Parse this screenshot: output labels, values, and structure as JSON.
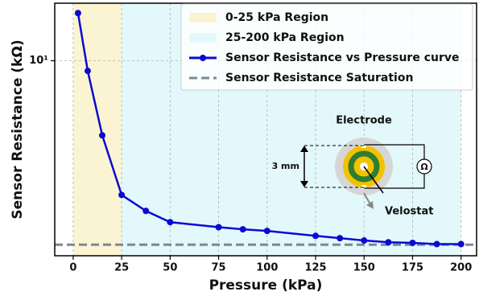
{
  "chart_data": {
    "type": "line",
    "xlabel": "Pressure (kPa)",
    "ylabel": "Sensor Resistance (kΩ)",
    "x": [
      2.5,
      7.5,
      15,
      25,
      37.5,
      50,
      75,
      87.5,
      100,
      125,
      137.5,
      150,
      162.5,
      175,
      187.5,
      200
    ],
    "series": [
      {
        "name": "Sensor Resistance vs Pressure curve",
        "color": "#0a0ad2",
        "values": [
          15.9,
          9.06,
          4.84,
          2.71,
          2.32,
          2.08,
          1.98,
          1.94,
          1.91,
          1.82,
          1.78,
          1.74,
          1.71,
          1.7,
          1.68,
          1.68
        ]
      }
    ],
    "regions": [
      {
        "name": "0-25 kPa Region",
        "color": "#fbf4d2",
        "x": [
          0,
          25
        ]
      },
      {
        "name": "25-200 kPa Region",
        "color": "#e3f8fb",
        "x": [
          25,
          200
        ]
      }
    ],
    "hlines": [
      {
        "name": "Sensor Resistance Saturation",
        "color": "#7a8898",
        "value": 1.67
      }
    ],
    "annotations": [
      "Electrode",
      "3 mm",
      "Velostat",
      "Ω"
    ],
    "xlim": [
      -9.5,
      208
    ],
    "xticks": [
      0,
      25,
      50,
      75,
      100,
      125,
      150,
      175,
      200
    ],
    "ylim": [
      1.5,
      17.5
    ],
    "yticks": [
      {
        "value": 10,
        "label": "10¹"
      }
    ],
    "ylog": true,
    "grid": true
  }
}
